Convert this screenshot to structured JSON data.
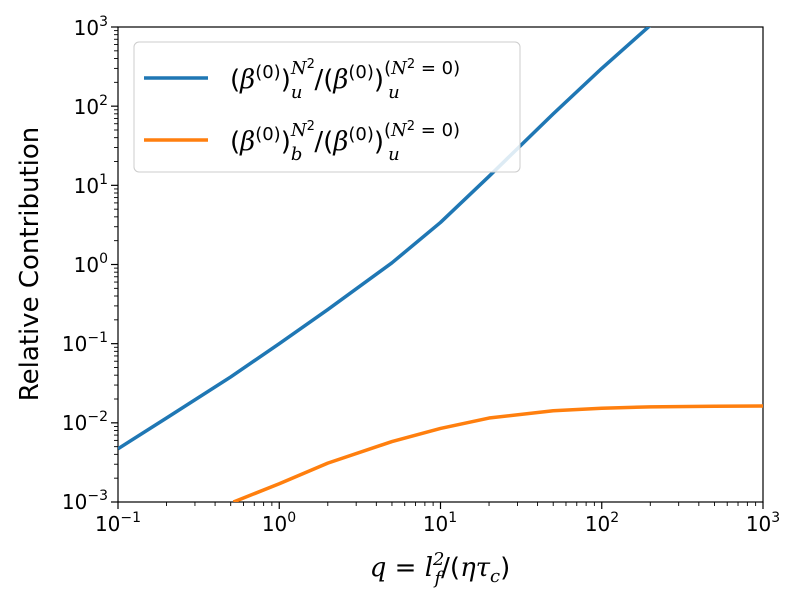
{
  "chart_data": {
    "type": "line",
    "xlabel": "q = l_f^2/(ητ_c)",
    "ylabel": "Relative Contribution",
    "xscale": "log",
    "yscale": "log",
    "xlim": [
      0.1,
      1000
    ],
    "ylim": [
      0.001,
      1000
    ],
    "x_ticks": [
      "10^-1",
      "10^0",
      "10^1",
      "10^2",
      "10^3"
    ],
    "y_ticks": [
      "10^-3",
      "10^-2",
      "10^-1",
      "10^0",
      "10^1",
      "10^2",
      "10^3"
    ],
    "legend_position": "top-left",
    "grid": false,
    "series": [
      {
        "name": "(β^(0))_u^(N^2)/(β^(0))_u^(N^2=0)",
        "color": "#1f77b4",
        "x": [
          0.1,
          0.2,
          0.5,
          1,
          2,
          5,
          10,
          20,
          50,
          100,
          200
        ],
        "y": [
          0.0047,
          0.0115,
          0.038,
          0.1,
          0.27,
          1.05,
          3.4,
          13,
          80,
          300,
          1050
        ]
      },
      {
        "name": "(β^(0))_b^(N^2)/(β^(0))_u^(N^2=0)",
        "color": "#ff7f0e",
        "x": [
          0.52,
          1,
          2,
          5,
          10,
          20,
          50,
          100,
          200,
          500,
          1000
        ],
        "y": [
          0.001,
          0.0017,
          0.0031,
          0.0058,
          0.0085,
          0.0115,
          0.0142,
          0.0153,
          0.0159,
          0.0162,
          0.0163
        ]
      }
    ]
  }
}
